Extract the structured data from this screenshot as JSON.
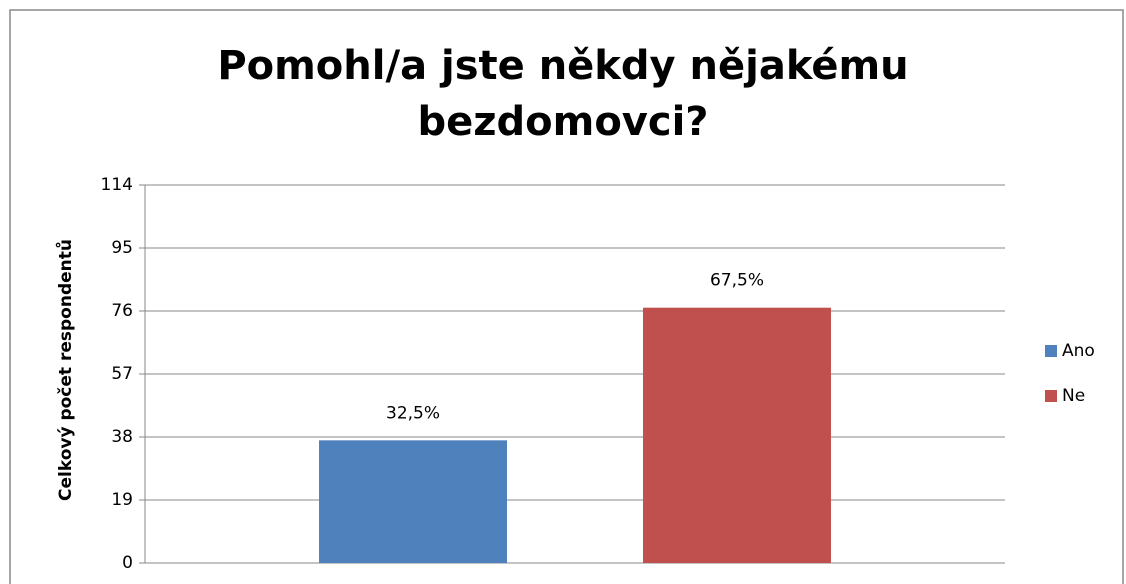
{
  "chart_data": {
    "type": "bar",
    "title": "Pomohl/a jste někdy nějakému bezdomovci?",
    "y_label": "Celkový počet respondentů",
    "categories": [
      null
    ],
    "series": [
      {
        "name": "Ano",
        "color": "#4f81bd",
        "values": [
          37
        ],
        "value_labels": [
          "32,5%"
        ]
      },
      {
        "name": "Ne",
        "color": "#c0504d",
        "values": [
          77
        ],
        "value_labels": [
          "67,5%"
        ]
      }
    ],
    "ylim": [
      0,
      114
    ],
    "yticks": [
      0,
      19,
      38,
      57,
      76,
      95,
      114
    ],
    "grid": true,
    "legend": "right"
  }
}
